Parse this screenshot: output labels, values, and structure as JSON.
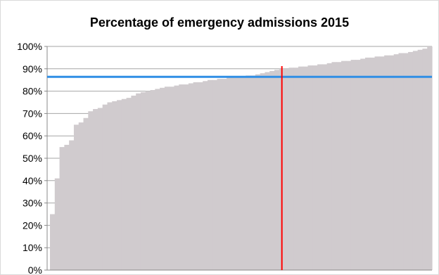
{
  "chart_data": {
    "type": "bar",
    "title": "Percentage of emergency admissions 2015",
    "xlabel": "",
    "ylabel": "",
    "ylim": [
      0,
      100
    ],
    "y_tick_labels": [
      "0%",
      "10%",
      "20%",
      "30%",
      "40%",
      "50%",
      "60%",
      "70%",
      "80%",
      "90%",
      "100%"
    ],
    "y_ticks": [
      0,
      10,
      20,
      30,
      40,
      50,
      60,
      70,
      80,
      90,
      100
    ],
    "grid": true,
    "legend": "none",
    "sorted_ascending": true,
    "bar_color": "#d0cbce",
    "series": [
      {
        "values": [
          25,
          41,
          55,
          56,
          58,
          65,
          66,
          68,
          71,
          72,
          72.5,
          74,
          75,
          75.5,
          76,
          76.5,
          77,
          78,
          79,
          79.5,
          80,
          80.5,
          81,
          81.5,
          82,
          82,
          82.5,
          83,
          83,
          83.5,
          84,
          84,
          84.5,
          85,
          85,
          85.5,
          85.5,
          86,
          86,
          86.5,
          86.5,
          87,
          87,
          87.5,
          88,
          88.5,
          89,
          89.5,
          90,
          90,
          90.5,
          90.5,
          91,
          91,
          91.5,
          91.5,
          92,
          92,
          92.5,
          93,
          93,
          93.5,
          93.5,
          94,
          94,
          94.5,
          95,
          95,
          95.5,
          95.5,
          96,
          96,
          96.5,
          97,
          97,
          97.5,
          98,
          98.5,
          99,
          100
        ]
      }
    ],
    "reference_lines": [
      {
        "orientation": "horizontal",
        "value": 86.4,
        "color": "#2f8ee5"
      },
      {
        "orientation": "vertical",
        "position_fraction": 0.61,
        "color": "#ff0000"
      }
    ]
  }
}
